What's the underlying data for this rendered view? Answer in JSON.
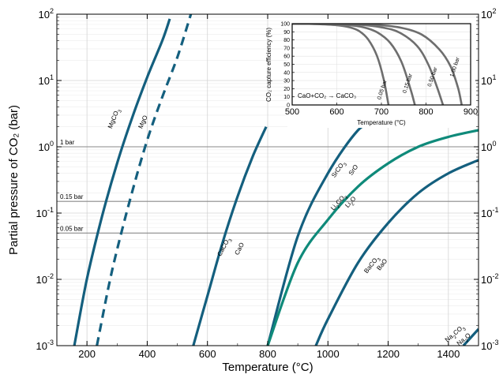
{
  "chart_data": [
    {
      "type": "line",
      "xlabel": "Temperature (°C)",
      "ylabel": "Partial pressure of CO₂ (bar)",
      "xlim": [
        100,
        1500
      ],
      "ylim": [
        0.001,
        100
      ],
      "yscale": "log",
      "grid": true,
      "x_ticks": [
        "200",
        "400",
        "600",
        "800",
        "1000",
        "1200",
        "1400"
      ],
      "y_ticks": [
        {
          "value": 0.001,
          "base": "10",
          "exp": "-3"
        },
        {
          "value": 0.01,
          "base": "10",
          "exp": "-2"
        },
        {
          "value": 0.1,
          "base": "10",
          "exp": "-1"
        },
        {
          "value": 1,
          "base": "10",
          "exp": "0"
        },
        {
          "value": 10,
          "base": "10",
          "exp": "1"
        },
        {
          "value": 100,
          "base": "10",
          "exp": "2"
        }
      ],
      "reference_lines": [
        {
          "value": 1,
          "label": "1 bar"
        },
        {
          "value": 0.15,
          "label": "0.15 bar"
        },
        {
          "value": 0.05,
          "label": "0.05 bar"
        }
      ],
      "series": [
        {
          "color": "#145f7e",
          "dash": false,
          "points": [
            [
              158,
              0.001
            ],
            [
              200,
              0.0102
            ],
            [
              250,
              0.0891
            ],
            [
              300,
              0.562
            ],
            [
              350,
              2.75
            ],
            [
              400,
              11.2
            ],
            [
              450,
              39.8
            ],
            [
              475,
              85
            ]
          ]
        },
        {
          "color": "#145f7e",
          "dash": true,
          "points": [
            [
              233,
              0.001
            ],
            [
              270,
              0.00708
            ],
            [
              300,
              0.0282
            ],
            [
              350,
              0.209
            ],
            [
              400,
              1.26
            ],
            [
              450,
              5.62
            ],
            [
              500,
              22.4
            ],
            [
              545,
              100
            ]
          ]
        },
        {
          "color": "#145f7e",
          "dash": false,
          "points": [
            [
              553,
              0.001
            ],
            [
              600,
              0.00562
            ],
            [
              650,
              0.0355
            ],
            [
              700,
              0.178
            ],
            [
              750,
              0.708
            ],
            [
              795,
              2.0
            ]
          ]
        },
        {
          "color": "#145f7e",
          "dash": false,
          "points": [
            [
              800,
              0.001
            ],
            [
              900,
              0.0447
            ],
            [
              1000,
              0.398
            ],
            [
              1100,
              1.78
            ],
            [
              1150,
              2.2
            ]
          ]
        },
        {
          "color": "#0f8a7a",
          "dash": false,
          "points": [
            [
              800,
              0.001
            ],
            [
              900,
              0.0178
            ],
            [
              1000,
              0.0794
            ],
            [
              1100,
              0.251
            ],
            [
              1200,
              0.562
            ],
            [
              1300,
              1.0
            ],
            [
              1400,
              1.41
            ],
            [
              1500,
              1.78
            ]
          ]
        },
        {
          "color": "#145f7e",
          "dash": false,
          "points": [
            [
              960,
              0.001
            ],
            [
              1000,
              0.00251
            ],
            [
              1100,
              0.0178
            ],
            [
              1200,
              0.0708
            ],
            [
              1300,
              0.2
            ],
            [
              1400,
              0.398
            ],
            [
              1500,
              0.631
            ]
          ]
        },
        {
          "color": "#145f7e",
          "dash": false,
          "points": [
            [
              1450,
              0.001
            ],
            [
              1500,
              0.00178
            ]
          ]
        }
      ],
      "curve_labels": [
        {
          "text": "MgCO",
          "sub": "3",
          "x": 295,
          "y": 2.6,
          "rot": -68
        },
        {
          "text": "MgO",
          "sub": "",
          "x": 392,
          "y": 2.3,
          "rot": -65
        },
        {
          "text": "CaCO",
          "sub": "3",
          "x": 660,
          "y": 0.03,
          "rot": -62
        },
        {
          "text": "CaO",
          "sub": "",
          "x": 712,
          "y": 0.028,
          "rot": -62
        },
        {
          "text": "SrCO",
          "sub": "3",
          "x": 1040,
          "y": 0.44,
          "rot": -55
        },
        {
          "text": "SrO",
          "sub": "",
          "x": 1090,
          "y": 0.43,
          "rot": -55
        },
        {
          "text": "Li",
          "sub": "2",
          "rest": "CO",
          "sub2": "3",
          "x": 1040,
          "y": 0.14,
          "rot": -48
        },
        {
          "text": "Li",
          "sub": "2",
          "rest": "O",
          "sub2": "",
          "x": 1080,
          "y": 0.14,
          "rot": -48
        },
        {
          "text": "BaCO",
          "sub": "3",
          "x": 1150,
          "y": 0.016,
          "rot": -52
        },
        {
          "text": "BaO",
          "sub": "",
          "x": 1185,
          "y": 0.016,
          "rot": -52
        },
        {
          "text": "Na",
          "sub": "2",
          "rest": "CO",
          "sub2": "3",
          "x": 1425,
          "y": 0.00145,
          "rot": -40
        },
        {
          "text": "Na",
          "sub": "2",
          "rest": "O",
          "sub2": "",
          "x": 1455,
          "y": 0.00118,
          "rot": -40
        }
      ]
    },
    {
      "type": "line",
      "xlabel": "Temperature (°C)",
      "ylabel": "CO₂ capture efficiency (%)",
      "annotation": "CaO+CO₂ → CaCO₃",
      "xlim": [
        500,
        900
      ],
      "ylim": [
        0,
        100
      ],
      "x_ticks": [
        "500",
        "600",
        "700",
        "800",
        "900"
      ],
      "y_ticks": [
        "0",
        "10",
        "20",
        "30",
        "40",
        "50",
        "60",
        "70",
        "80",
        "90",
        "100"
      ],
      "series": [
        {
          "name": "0.05 bar",
          "color": "#6e6e6e",
          "points": [
            [
              500,
              100
            ],
            [
              550,
              99.6
            ],
            [
              600,
              98.2
            ],
            [
              630,
              95.4
            ],
            [
              650,
              91
            ],
            [
              670,
              80.8
            ],
            [
              690,
              60.4
            ],
            [
              705,
              32
            ],
            [
              716,
              0
            ]
          ]
        },
        {
          "name": "0.15 bar",
          "color": "#6e6e6e",
          "points": [
            [
              500,
              100
            ],
            [
              560,
              99.7
            ],
            [
              620,
              98.5
            ],
            [
              660,
              95.5
            ],
            [
              690,
              89.5
            ],
            [
              720,
              76.2
            ],
            [
              745,
              53
            ],
            [
              765,
              20
            ],
            [
              775,
              0
            ]
          ]
        },
        {
          "name": "0.50 bar",
          "color": "#6e6e6e",
          "points": [
            [
              500,
              100
            ],
            [
              580,
              99.8
            ],
            [
              650,
              98.7
            ],
            [
              700,
              95.5
            ],
            [
              740,
              89.2
            ],
            [
              780,
              72.6
            ],
            [
              805,
              50
            ],
            [
              825,
              21.6
            ],
            [
              838,
              0
            ]
          ]
        },
        {
          "name": "1.00 bar",
          "color": "#6e6e6e",
          "points": [
            [
              500,
              100
            ],
            [
              600,
              99.8
            ],
            [
              680,
              98.8
            ],
            [
              740,
              95.4
            ],
            [
              790,
              86.7
            ],
            [
              830,
              68.3
            ],
            [
              855,
              47.6
            ],
            [
              872,
              20.6
            ],
            [
              880,
              0
            ]
          ]
        }
      ],
      "curve_label_positions": [
        {
          "x": 705,
          "y": 18
        },
        {
          "x": 762,
          "y": 26
        },
        {
          "x": 818,
          "y": 34
        },
        {
          "x": 868,
          "y": 46
        }
      ]
    }
  ]
}
